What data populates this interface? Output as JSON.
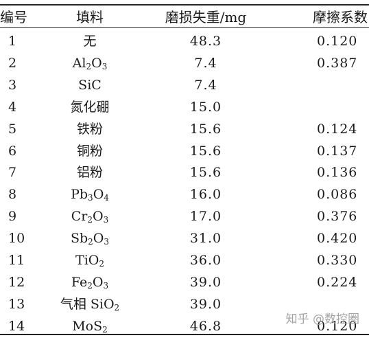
{
  "table": {
    "headers": [
      "编号",
      "填料",
      "磨损失重/mg",
      "摩擦系数"
    ],
    "rows": [
      {
        "id": "1",
        "filler": "无",
        "filler_parts": [],
        "loss": "48.3",
        "friction": "0.120"
      },
      {
        "id": "2",
        "filler": "Al2O3",
        "filler_parts": [
          [
            "Al",
            false
          ],
          [
            "2",
            true
          ],
          [
            "O",
            false
          ],
          [
            "3",
            true
          ]
        ],
        "loss": "7.4",
        "friction": "0.387"
      },
      {
        "id": "3",
        "filler": "SiC",
        "filler_parts": [],
        "loss": "7.4",
        "friction": ""
      },
      {
        "id": "4",
        "filler": "氮化硼",
        "filler_parts": [],
        "loss": "15.0",
        "friction": ""
      },
      {
        "id": "5",
        "filler": "铁粉",
        "filler_parts": [],
        "loss": "15.6",
        "friction": "0.124"
      },
      {
        "id": "6",
        "filler": "铜粉",
        "filler_parts": [],
        "loss": "15.6",
        "friction": "0.137"
      },
      {
        "id": "7",
        "filler": "铝粉",
        "filler_parts": [],
        "loss": "15.6",
        "friction": "0.136"
      },
      {
        "id": "8",
        "filler": "Pb3O4",
        "filler_parts": [
          [
            "Pb",
            false
          ],
          [
            "3",
            true
          ],
          [
            "O",
            false
          ],
          [
            "4",
            true
          ]
        ],
        "loss": "16.0",
        "friction": "0.086"
      },
      {
        "id": "9",
        "filler": "Cr2O3",
        "filler_parts": [
          [
            "Cr",
            false
          ],
          [
            "2",
            true
          ],
          [
            "O",
            false
          ],
          [
            "3",
            true
          ]
        ],
        "loss": "17.0",
        "friction": "0.376"
      },
      {
        "id": "10",
        "filler": "Sb2O3",
        "filler_parts": [
          [
            "Sb",
            false
          ],
          [
            "2",
            true
          ],
          [
            "O",
            false
          ],
          [
            "3",
            true
          ]
        ],
        "loss": "31.0",
        "friction": "0.420"
      },
      {
        "id": "11",
        "filler": "TiO2",
        "filler_parts": [
          [
            "TiO",
            false
          ],
          [
            "2",
            true
          ]
        ],
        "loss": "36.0",
        "friction": "0.330"
      },
      {
        "id": "12",
        "filler": "Fe2O3",
        "filler_parts": [
          [
            "Fe",
            false
          ],
          [
            "2",
            true
          ],
          [
            "O",
            false
          ],
          [
            "3",
            true
          ]
        ],
        "loss": "39.0",
        "friction": "0.224"
      },
      {
        "id": "13",
        "filler": "气相 SiO2",
        "filler_parts": [
          [
            "气相 SiO",
            false
          ],
          [
            "2",
            true
          ]
        ],
        "loss": "39.0",
        "friction": ""
      },
      {
        "id": "14",
        "filler": "MoS2",
        "filler_parts": [
          [
            "MoS",
            false
          ],
          [
            "2",
            true
          ]
        ],
        "loss": "46.8",
        "friction": "0.120"
      }
    ]
  },
  "watermark": "知乎 @数控圈"
}
